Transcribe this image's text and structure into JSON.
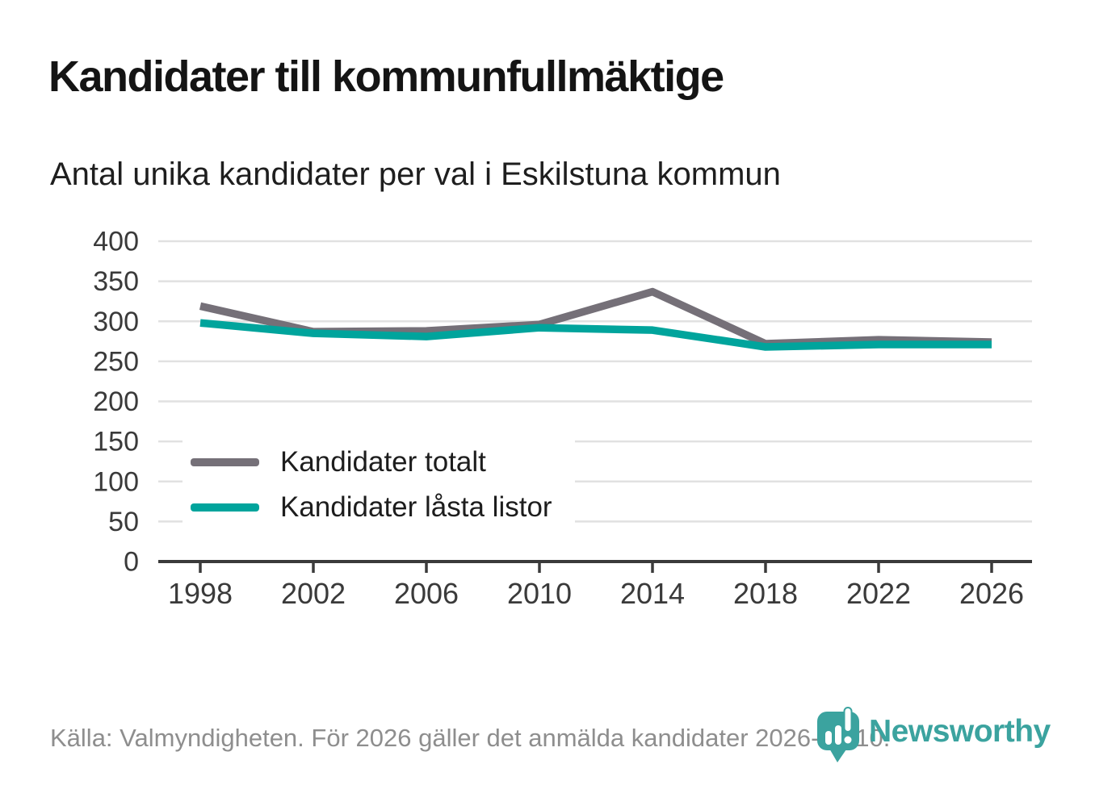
{
  "header": {
    "title": "Kandidater till kommunfullmäktige",
    "subtitle": "Antal unika kandidater per val i Eskilstuna kommun"
  },
  "chart_data": {
    "type": "line",
    "title": "Kandidater till kommunfullmäktige",
    "subtitle": "Antal unika kandidater per val i Eskilstuna kommun",
    "categories": [
      "1998",
      "2002",
      "2006",
      "2010",
      "2014",
      "2018",
      "2022",
      "2026"
    ],
    "series": [
      {
        "name": "Kandidater totalt",
        "color": "#757078",
        "values": [
          319,
          287,
          288,
          296,
          337,
          272,
          277,
          274
        ]
      },
      {
        "name": "Kandidater låsta listor",
        "color": "#00a49c",
        "values": [
          298,
          285,
          281,
          292,
          289,
          268,
          271,
          271
        ]
      }
    ],
    "ylim": [
      0,
      400
    ],
    "ytick_step": 50,
    "xlabel": "",
    "ylabel": "",
    "grid": "horizontal",
    "legend_position": "inside bottom-left"
  },
  "footer": {
    "source": "Källa: Valmyndigheten. För 2026 gäller det anmälda kandidater 2026-04-10."
  },
  "logo": {
    "wordmark": "Newsworthy",
    "color": "#3ba39f"
  }
}
